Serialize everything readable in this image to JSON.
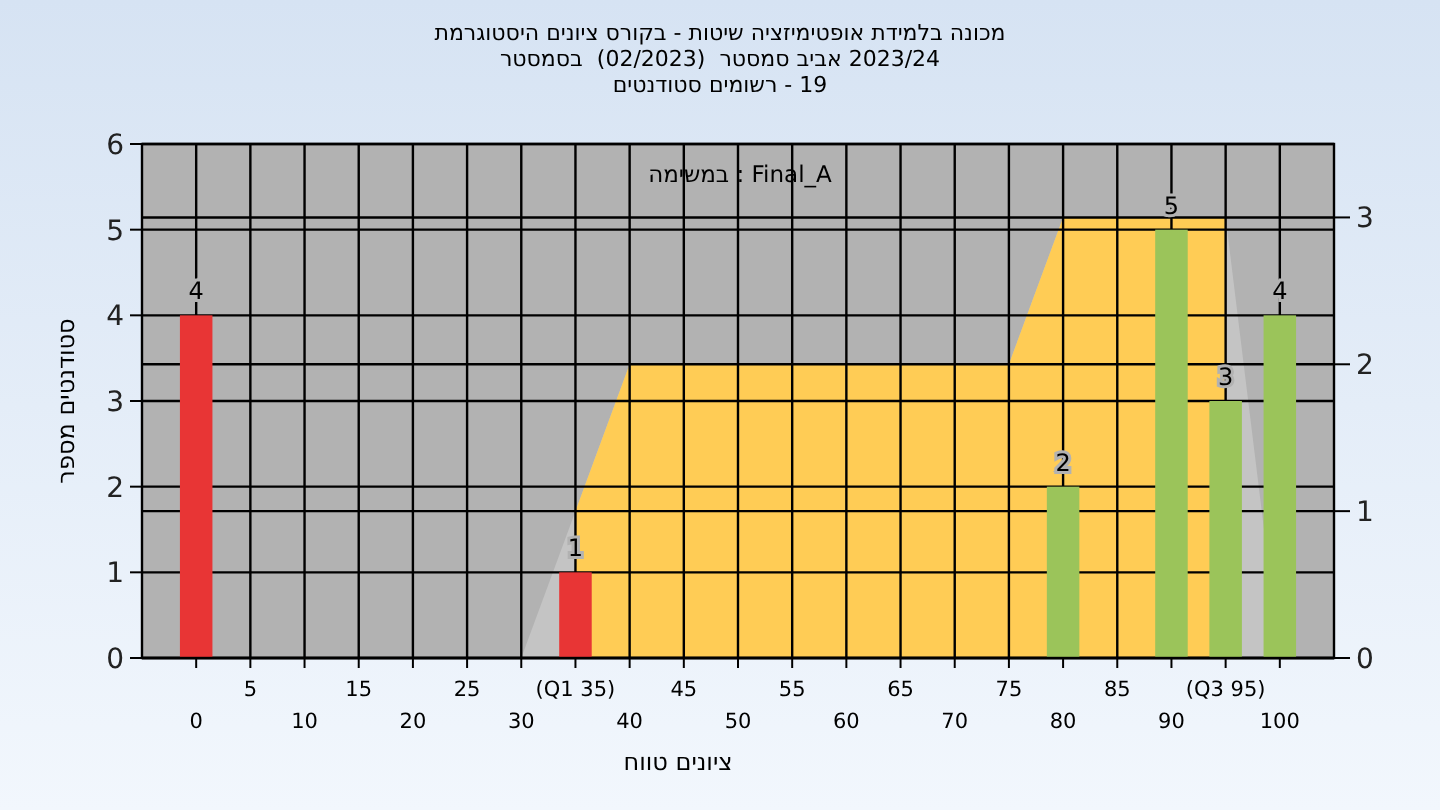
{
  "chart_data": {
    "type": "bar",
    "title": "היסטוגרמת ציונים בקורס - שיטות אופטימיזציה בלמידת מכונה",
    "subtitle": "בסמסטר  (02/2023)  סמסטר אביב 2023/24\nסטודנטים רשומים - 19",
    "xlabel": "טווח ציונים",
    "ylabel": "מספר סטודנטים",
    "annotations": [
      "במשימה : Final_A"
    ],
    "series": [
      {
        "type": "area",
        "axis": "y2",
        "color": "#c4c4c4",
        "x": [
          30,
          35,
          40,
          75,
          80,
          95,
          100
        ],
        "values": [
          0,
          1,
          2,
          2,
          3,
          3,
          0
        ]
      },
      {
        "type": "area",
        "axis": "y2",
        "color": "#ffcc55",
        "x": [
          35,
          40,
          75,
          80,
          95
        ],
        "values": [
          1,
          2,
          2,
          3,
          3
        ]
      },
      {
        "x": [
          0,
          35,
          80,
          90,
          95,
          100
        ],
        "values": [
          4,
          1,
          2,
          5,
          3,
          4
        ],
        "value_labels": [
          "4",
          "1",
          "2",
          "5",
          "3",
          "4"
        ],
        "colors": [
          "#e83535",
          "#e83535",
          "#9bc45a",
          "#9bc45a",
          "#9bc45a",
          "#9bc45a"
        ]
      }
    ],
    "xlim": [
      -5,
      105
    ],
    "xticks": [
      0,
      10,
      20,
      30,
      40,
      50,
      60,
      70,
      80,
      90,
      100
    ],
    "x2lim": [
      -5,
      105
    ],
    "x2ticks": [
      5,
      15,
      25,
      {
        "value": 35,
        "label": "(Q1 35)"
      },
      45,
      55,
      65,
      75,
      85,
      {
        "value": 95,
        "label": "(Q3 95)"
      }
    ],
    "ylim": [
      0,
      6
    ],
    "yticks": [
      0,
      1,
      2,
      3,
      4,
      5,
      6
    ],
    "y2lim": [
      0,
      3.5
    ],
    "y2ticks": [
      0,
      1,
      2,
      3
    ],
    "grid": true
  }
}
